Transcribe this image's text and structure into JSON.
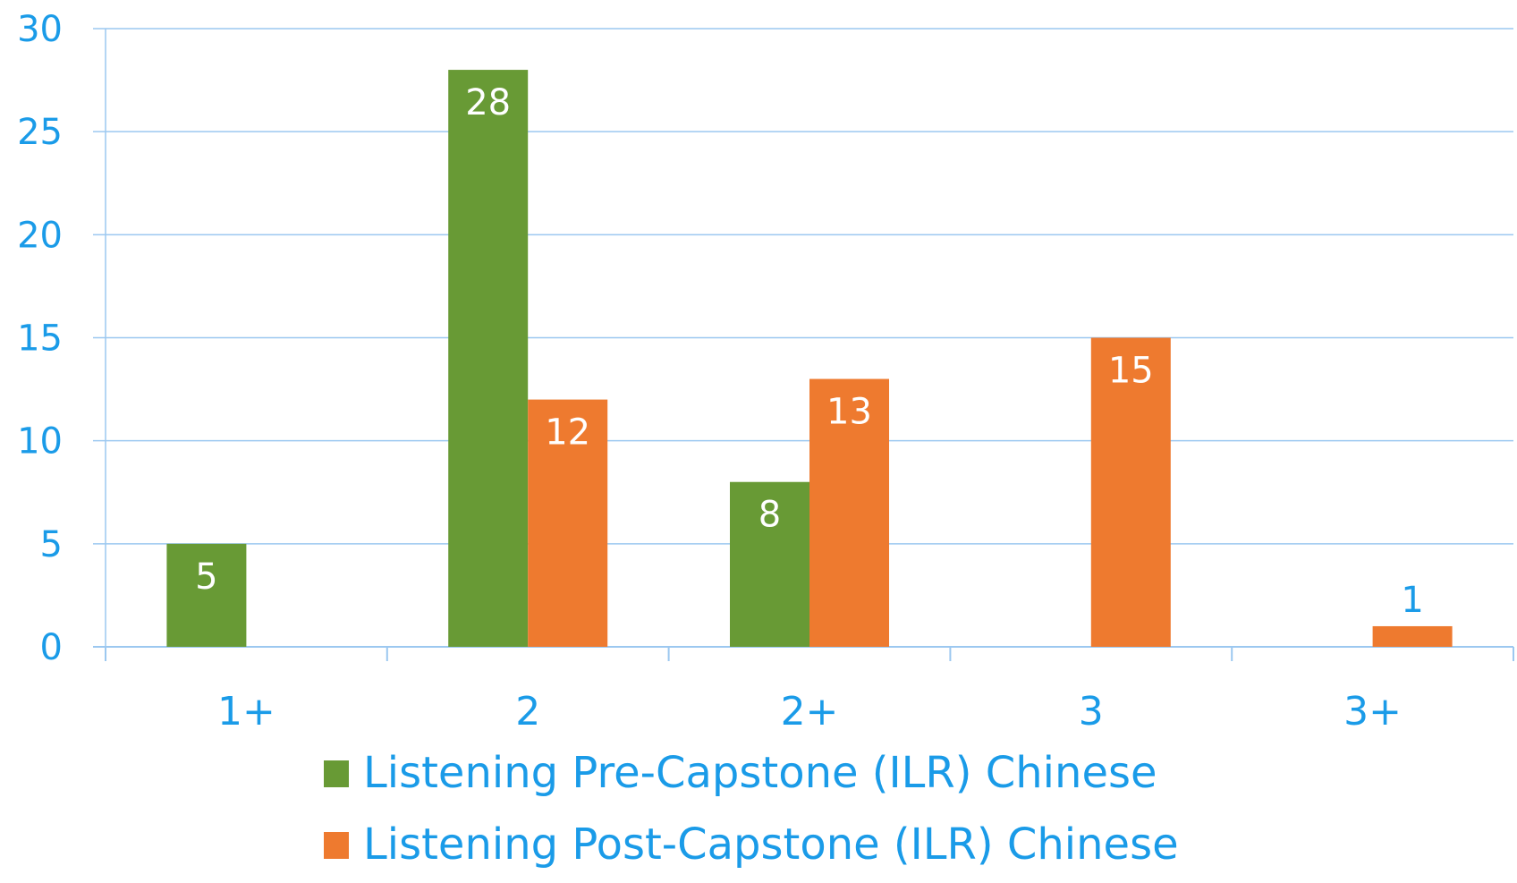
{
  "chart_data": {
    "type": "bar",
    "categories": [
      "1+",
      "2",
      "2+",
      "3",
      "3+"
    ],
    "series": [
      {
        "name": "Listening Pre-Capstone (ILR) Chinese",
        "color": "#689a35",
        "values": [
          5,
          28,
          8,
          null,
          null
        ]
      },
      {
        "name": "Listening Post-Capstone (ILR) Chinese",
        "color": "#ee7a2f",
        "values": [
          null,
          12,
          13,
          15,
          1
        ]
      }
    ],
    "yticks": [
      "0",
      "5",
      "10",
      "15",
      "20",
      "25",
      "30"
    ],
    "ylim": [
      0,
      30
    ],
    "grid": true,
    "legend": "bottom",
    "label_color": "#1a9be8"
  }
}
